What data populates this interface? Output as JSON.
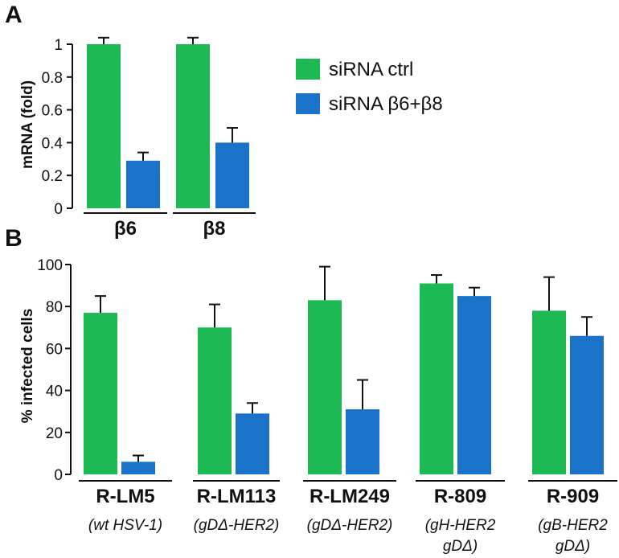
{
  "colors": {
    "ctrl": "#1db954",
    "knockdown": "#1a73c9"
  },
  "legend": {
    "ctrl": "siRNA ctrl",
    "knockdown": "siRNA β6+β8"
  },
  "chart_data": [
    {
      "panel": "A",
      "type": "bar",
      "ylabel": "mRNA (fold)",
      "ylim": [
        0,
        1
      ],
      "yticks": [
        "0",
        "0.2",
        "0.4",
        "0.6",
        "0.8",
        "1"
      ],
      "categories": [
        "β6",
        "β8"
      ],
      "series": [
        {
          "name": "siRNA ctrl",
          "values": [
            1.0,
            1.0
          ],
          "errors": [
            0.04,
            0.04
          ]
        },
        {
          "name": "siRNA β6+β8",
          "values": [
            0.29,
            0.4
          ],
          "errors": [
            0.05,
            0.09
          ]
        }
      ]
    },
    {
      "panel": "B",
      "type": "bar",
      "ylabel": "% infected cells",
      "ylim": [
        0,
        100
      ],
      "yticks": [
        "0",
        "20",
        "40",
        "60",
        "80",
        "100"
      ],
      "categories": [
        "R-LM5",
        "R-LM113",
        "R-LM249",
        "R-809",
        "R-909"
      ],
      "sublabels": [
        [
          "(wt HSV-1)"
        ],
        [
          "(gDΔ-HER2)"
        ],
        [
          "(gDΔ-HER2)"
        ],
        [
          "(gH-HER2",
          "gDΔ)"
        ],
        [
          "(gB-HER2",
          "gDΔ)"
        ]
      ],
      "series": [
        {
          "name": "siRNA ctrl",
          "values": [
            77,
            70,
            83,
            91,
            78
          ],
          "errors": [
            8,
            11,
            16,
            4,
            16
          ]
        },
        {
          "name": "siRNA β6+β8",
          "values": [
            6,
            29,
            31,
            85,
            66
          ],
          "errors": [
            3,
            5,
            14,
            4,
            9
          ]
        }
      ]
    }
  ]
}
